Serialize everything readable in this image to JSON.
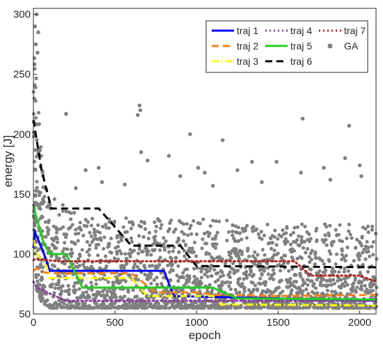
{
  "chart_data": {
    "type": "line",
    "xlabel": "epoch",
    "ylabel": "energy [J]",
    "xlim": [
      0,
      2100
    ],
    "ylim": [
      50,
      305
    ],
    "xticks": [
      0,
      500,
      1000,
      1500,
      2000
    ],
    "yticks": [
      50,
      100,
      150,
      200,
      250,
      300
    ],
    "grid": false,
    "legend_position": "top-right",
    "series": [
      {
        "name": "traj 1",
        "color": "#0000ff",
        "style": "solid",
        "x": [
          0,
          10,
          60,
          100,
          800,
          860,
          2100
        ],
        "y": [
          105,
          118,
          102,
          86,
          86,
          65,
          61
        ]
      },
      {
        "name": "traj 2",
        "color": "#ff7f0e",
        "style": "dashed",
        "x": [
          0,
          20,
          60,
          100,
          600,
          750,
          1000,
          1120,
          1500,
          2100
        ],
        "y": [
          86,
          88,
          85,
          84,
          84,
          68,
          68,
          66,
          65,
          66
        ]
      },
      {
        "name": "traj 3",
        "color": "#ffff00",
        "style": "dashdot",
        "x": [
          0,
          20,
          80,
          100,
          600,
          700,
          1100,
          1150,
          2100
        ],
        "y": [
          112,
          100,
          90,
          80,
          80,
          65,
          65,
          58,
          57
        ]
      },
      {
        "name": "traj 4",
        "color": "#8b3a9e",
        "style": "dotted",
        "x": [
          0,
          20,
          100,
          200,
          2100
        ],
        "y": [
          77,
          72,
          67,
          61,
          61
        ]
      },
      {
        "name": "traj 5",
        "color": "#22cc22",
        "style": "solid",
        "x": [
          0,
          60,
          100,
          200,
          300,
          1100,
          1250,
          2100
        ],
        "y": [
          140,
          110,
          100,
          100,
          72,
          72,
          63,
          62
        ]
      },
      {
        "name": "traj 6",
        "color": "#000000",
        "style": "dashed",
        "x": [
          0,
          50,
          110,
          400,
          600,
          900,
          1000,
          2100
        ],
        "y": [
          212,
          170,
          138,
          138,
          107,
          107,
          90,
          89
        ]
      },
      {
        "name": "traj 7",
        "color": "#b22222",
        "style": "dotted",
        "x": [
          0,
          20,
          150,
          1600,
          1700,
          2000,
          2100
        ],
        "y": [
          95,
          96,
          94,
          94,
          82,
          82,
          77
        ]
      }
    ],
    "scatter": {
      "name": "GA",
      "color": "#808080",
      "band": [
        [
          0,
          120,
          300
        ],
        [
          20,
          70,
          235
        ],
        [
          50,
          60,
          180
        ],
        [
          100,
          55,
          150
        ],
        [
          250,
          55,
          135
        ],
        [
          500,
          55,
          130
        ],
        [
          1000,
          55,
          130
        ],
        [
          1500,
          55,
          125
        ],
        [
          2000,
          55,
          125
        ],
        [
          2100,
          55,
          125
        ]
      ],
      "outliers": [
        [
          200,
          217
        ],
        [
          20,
          300
        ],
        [
          10,
          290
        ],
        [
          30,
          285
        ],
        [
          15,
          275
        ],
        [
          25,
          268
        ],
        [
          640,
          216
        ],
        [
          650,
          224
        ],
        [
          655,
          220
        ],
        [
          960,
          200
        ],
        [
          1160,
          195
        ],
        [
          1650,
          213
        ],
        [
          1935,
          207
        ],
        [
          320,
          170
        ],
        [
          400,
          172
        ],
        [
          660,
          185
        ],
        [
          700,
          178
        ],
        [
          830,
          182
        ],
        [
          1010,
          172
        ],
        [
          1050,
          168
        ],
        [
          1250,
          170
        ],
        [
          1340,
          177
        ],
        [
          1490,
          177
        ],
        [
          1640,
          168
        ],
        [
          1780,
          172
        ],
        [
          1820,
          162
        ],
        [
          1910,
          180
        ],
        [
          2000,
          174
        ],
        [
          2010,
          165
        ],
        [
          420,
          160
        ],
        [
          560,
          158
        ],
        [
          900,
          165
        ],
        [
          1400,
          160
        ],
        [
          1100,
          157
        ],
        [
          260,
          155
        ]
      ]
    }
  }
}
